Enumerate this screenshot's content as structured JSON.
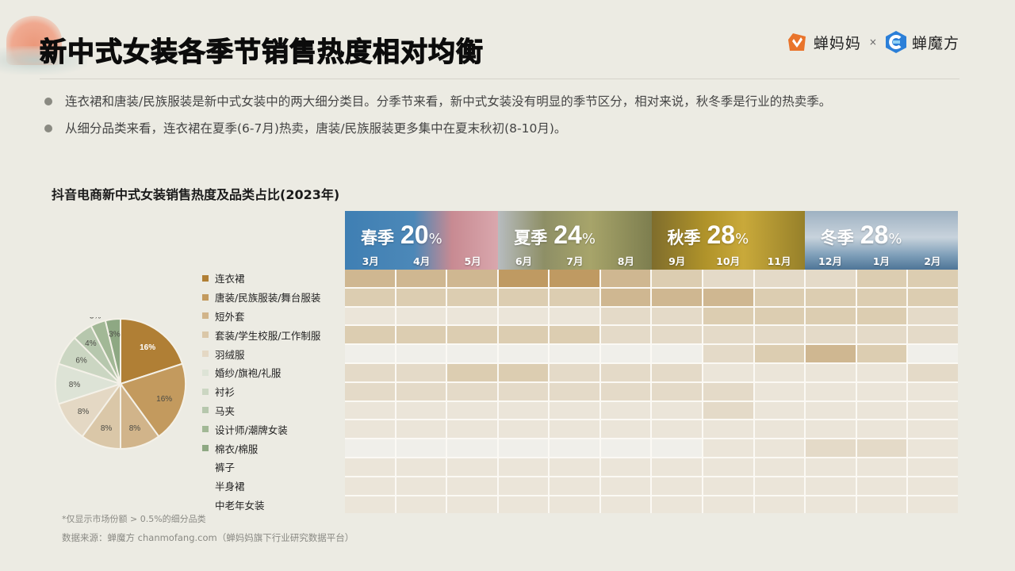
{
  "header": {
    "title": "新中式女装各季节销售热度相对均衡",
    "logos": {
      "brand_a": "蝉妈妈",
      "separator": "×",
      "brand_b": "蝉魔方"
    }
  },
  "bullets": [
    "连衣裙和唐装/民族服装是新中式女装中的两大细分类目。分季节来看，新中式女装没有明显的季节区分，相对来说，秋冬季是行业的热卖季。",
    "从细分品类来看，连衣裙在夏季(6-7月)热卖，唐装/民族服装更多集中在夏末秋初(8-10月)。"
  ],
  "footnote": "*仅显示市场份额 > 0.5%的细分品类",
  "source": "数据来源：蝉魔方 chanmofang.com（蝉妈妈旗下行业研究数据平台）",
  "colors": {
    "background": "#ecebe3",
    "heat_levels": [
      "#f0efea",
      "#ebe5d9",
      "#e4dac8",
      "#dccdb1",
      "#cfb791",
      "#bf9a62"
    ],
    "pie": [
      "#b07f35",
      "#c39a5e",
      "#d1b48a",
      "#dac7a8",
      "#e4d8c4",
      "#dde3d6",
      "#cbd6c2",
      "#b6c7ad",
      "#a2b896",
      "#8ea883"
    ]
  },
  "chart_data": [
    {
      "type": "pie",
      "title": "抖音电商新中式女装销售热度及品类占比(2023年)",
      "labels": [
        "连衣裙",
        "唐装/民族服装/舞台服装",
        "短外套",
        "套装/学生校服/工作制服",
        "羽绒服",
        "婚纱/旗袍/礼服",
        "衬衫",
        "马夹",
        "设计师/潮牌女装",
        "棉衣/棉服"
      ],
      "values": [
        16,
        16,
        8,
        8,
        8,
        8,
        6,
        4,
        3,
        3
      ],
      "value_labels": [
        "16%",
        "16%",
        "8%",
        "8%",
        "8%",
        "8%",
        "6%",
        "4%",
        "3%",
        "3%"
      ]
    },
    {
      "type": "heatmap",
      "title": "抖音电商新中式女装销售热度及品类占比(2023年)",
      "seasons": [
        {
          "name": "春季",
          "share": "20",
          "unit": "%",
          "months": [
            "3月",
            "4月",
            "5月"
          ]
        },
        {
          "name": "夏季",
          "share": "24",
          "unit": "%",
          "months": [
            "6月",
            "7月",
            "8月"
          ]
        },
        {
          "name": "秋季",
          "share": "28",
          "unit": "%",
          "months": [
            "9月",
            "10月",
            "11月"
          ]
        },
        {
          "name": "冬季",
          "share": "28",
          "unit": "%",
          "months": [
            "12月",
            "1月",
            "2月"
          ]
        }
      ],
      "x": [
        "3月",
        "4月",
        "5月",
        "6月",
        "7月",
        "8月",
        "9月",
        "10月",
        "11月",
        "12月",
        "1月",
        "2月"
      ],
      "rows": [
        "连衣裙",
        "唐装/民族服装/舞台服装",
        "短外套",
        "套装/学生校服/工作制服",
        "羽绒服",
        "婚纱/旗袍/礼服",
        "衬衫",
        "马夹",
        "设计师/潮牌女装",
        "棉衣/棉服",
        "裤子",
        "半身裙",
        "中老年女装"
      ],
      "intensity_scale": "0 (lowest) - 5 (highest)",
      "values": [
        [
          4,
          4,
          4,
          5,
          5,
          4,
          3,
          2,
          2,
          2,
          3,
          3
        ],
        [
          3,
          3,
          3,
          3,
          3,
          4,
          4,
          4,
          3,
          3,
          3,
          3
        ],
        [
          1,
          1,
          1,
          1,
          1,
          2,
          2,
          3,
          3,
          3,
          3,
          2
        ],
        [
          3,
          3,
          3,
          3,
          3,
          2,
          2,
          2,
          2,
          2,
          2,
          2
        ],
        [
          0,
          0,
          0,
          0,
          0,
          0,
          0,
          2,
          3,
          4,
          3,
          0
        ],
        [
          2,
          2,
          3,
          3,
          2,
          2,
          2,
          1,
          1,
          1,
          1,
          2
        ],
        [
          2,
          2,
          2,
          2,
          2,
          2,
          2,
          2,
          1,
          1,
          1,
          1
        ],
        [
          1,
          1,
          1,
          1,
          1,
          1,
          1,
          2,
          1,
          1,
          1,
          1
        ],
        [
          1,
          1,
          1,
          1,
          1,
          1,
          1,
          1,
          1,
          1,
          1,
          1
        ],
        [
          0,
          0,
          0,
          0,
          0,
          0,
          0,
          1,
          1,
          2,
          2,
          1
        ],
        [
          1,
          1,
          1,
          1,
          1,
          1,
          1,
          1,
          1,
          1,
          1,
          1
        ],
        [
          1,
          1,
          1,
          1,
          1,
          1,
          1,
          1,
          1,
          1,
          1,
          1
        ],
        [
          1,
          1,
          1,
          1,
          1,
          1,
          1,
          1,
          1,
          1,
          1,
          1
        ]
      ]
    }
  ],
  "legend": [
    {
      "label": "连衣裙",
      "color": "#b07f35"
    },
    {
      "label": "唐装/民族服装/舞台服装",
      "color": "#c39a5e"
    },
    {
      "label": "短外套",
      "color": "#d1b48a"
    },
    {
      "label": "套装/学生校服/工作制服",
      "color": "#dac7a8"
    },
    {
      "label": "羽绒服",
      "color": "#e4d8c4"
    },
    {
      "label": "婚纱/旗袍/礼服",
      "color": "#dde3d6"
    },
    {
      "label": "衬衫",
      "color": "#cbd6c2"
    },
    {
      "label": "马夹",
      "color": "#b6c7ad"
    },
    {
      "label": "设计师/潮牌女装",
      "color": "#a2b896"
    },
    {
      "label": "棉衣/棉服",
      "color": "#8ea883"
    },
    {
      "label": "裤子",
      "color": ""
    },
    {
      "label": "半身裙",
      "color": ""
    },
    {
      "label": "中老年女装",
      "color": ""
    }
  ]
}
